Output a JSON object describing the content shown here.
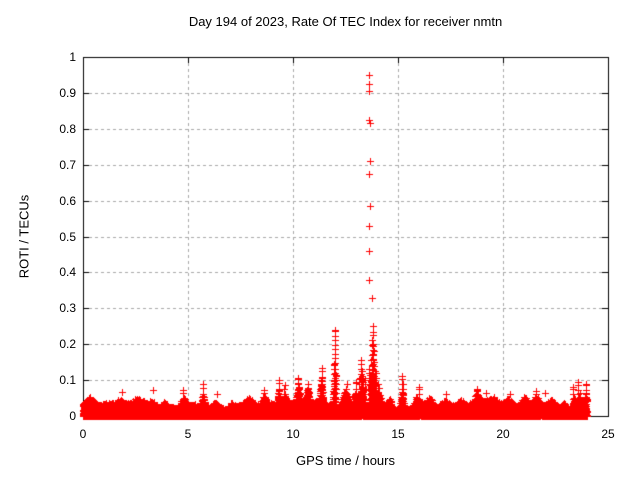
{
  "window": {
    "background": "#ffffff"
  },
  "chart_data": {
    "type": "scatter",
    "title": "Day 194 of 2023, Rate Of TEC Index for receiver nmtn",
    "xlabel": "GPS time / hours",
    "ylabel": "ROTI / TECUs",
    "xlim": [
      0,
      25
    ],
    "ylim": [
      0,
      1
    ],
    "xticks": {
      "values": [
        0,
        5,
        10,
        15,
        20,
        25
      ],
      "labels": [
        "0",
        "5",
        "10",
        "15",
        "20",
        "25"
      ]
    },
    "yticks": {
      "values": [
        0,
        0.1,
        0.2,
        0.3,
        0.4,
        0.5,
        0.6,
        0.7,
        0.8,
        0.9,
        1
      ],
      "labels": [
        "0",
        "0.1",
        "0.2",
        "0.3",
        "0.4",
        "0.5",
        "0.6",
        "0.7",
        "0.8",
        "0.9",
        "1"
      ]
    },
    "grid": {
      "show": true,
      "color": "#a9a9a9",
      "dash": [
        3,
        3
      ]
    },
    "axis_color": "#000000",
    "legend": "none",
    "series": [
      {
        "name": "ROTI",
        "marker": "plus",
        "marker_size": 7,
        "color": "#ff0000"
      }
    ],
    "x_data_range": [
      0,
      24
    ],
    "baseline_band": {
      "y_min": 0,
      "y_typical_top": 0.045,
      "description": "dense red noise band spanning 0-24 h, values mostly below 0.05"
    },
    "bumps": [
      {
        "x": 0.35,
        "h": 0.055,
        "w": 0.15
      },
      {
        "x": 1.05,
        "h": 0.05,
        "w": 0.2
      },
      {
        "x": 1.8,
        "h": 0.058,
        "w": 0.15
      },
      {
        "x": 2.6,
        "h": 0.052,
        "w": 0.2
      },
      {
        "x": 3.3,
        "h": 0.06,
        "w": 0.15
      },
      {
        "x": 3.9,
        "h": 0.058,
        "w": 0.12
      },
      {
        "x": 4.78,
        "h": 0.07,
        "w": 0.15
      },
      {
        "x": 5.72,
        "h": 0.082,
        "w": 0.1
      },
      {
        "x": 6.3,
        "h": 0.06,
        "w": 0.2
      },
      {
        "x": 7.1,
        "h": 0.063,
        "w": 0.15
      },
      {
        "x": 7.9,
        "h": 0.06,
        "w": 0.2
      },
      {
        "x": 8.62,
        "h": 0.068,
        "w": 0.12
      },
      {
        "x": 9.33,
        "h": 0.09,
        "w": 0.08
      },
      {
        "x": 9.6,
        "h": 0.08,
        "w": 0.1
      },
      {
        "x": 10.25,
        "h": 0.095,
        "w": 0.07
      },
      {
        "x": 10.7,
        "h": 0.085,
        "w": 0.1
      },
      {
        "x": 11.35,
        "h": 0.11,
        "w": 0.07
      },
      {
        "x": 11.95,
        "h": 0.12,
        "w": 0.06
      },
      {
        "x": 12.5,
        "h": 0.085,
        "w": 0.15
      },
      {
        "x": 13.0,
        "h": 0.09,
        "w": 0.1
      },
      {
        "x": 13.3,
        "h": 0.12,
        "w": 0.08
      },
      {
        "x": 13.78,
        "h": 0.14,
        "w": 0.1
      },
      {
        "x": 14.1,
        "h": 0.088,
        "w": 0.12
      },
      {
        "x": 14.6,
        "h": 0.075,
        "w": 0.15
      },
      {
        "x": 15.2,
        "h": 0.095,
        "w": 0.08
      },
      {
        "x": 15.9,
        "h": 0.075,
        "w": 0.12
      },
      {
        "x": 16.5,
        "h": 0.065,
        "w": 0.15
      },
      {
        "x": 17.2,
        "h": 0.06,
        "w": 0.2
      },
      {
        "x": 18.0,
        "h": 0.06,
        "w": 0.2
      },
      {
        "x": 18.77,
        "h": 0.07,
        "w": 0.12
      },
      {
        "x": 19.5,
        "h": 0.06,
        "w": 0.2
      },
      {
        "x": 20.3,
        "h": 0.06,
        "w": 0.2
      },
      {
        "x": 21.0,
        "h": 0.063,
        "w": 0.15
      },
      {
        "x": 21.6,
        "h": 0.067,
        "w": 0.12
      },
      {
        "x": 22.3,
        "h": 0.06,
        "w": 0.2
      },
      {
        "x": 22.9,
        "h": 0.065,
        "w": 0.15
      },
      {
        "x": 23.4,
        "h": 0.078,
        "w": 0.08
      },
      {
        "x": 23.65,
        "h": 0.088,
        "w": 0.06
      },
      {
        "x": 23.95,
        "h": 0.082,
        "w": 0.08
      }
    ],
    "towers": [
      {
        "x": 12.0,
        "top": 0.24
      },
      {
        "x": 11.95,
        "top": 0.145
      },
      {
        "x": 12.06,
        "top": 0.115
      },
      {
        "x": 11.38,
        "top": 0.135
      },
      {
        "x": 11.32,
        "top": 0.1
      },
      {
        "x": 13.22,
        "top": 0.155
      },
      {
        "x": 13.27,
        "top": 0.125
      },
      {
        "x": 13.17,
        "top": 0.105
      },
      {
        "x": 13.62,
        "top": 0.13
      },
      {
        "x": 13.67,
        "top": 0.115
      },
      {
        "x": 13.79,
        "top": 0.235
      },
      {
        "x": 13.83,
        "top": 0.2
      },
      {
        "x": 13.74,
        "top": 0.17
      },
      {
        "x": 13.88,
        "top": 0.15
      },
      {
        "x": 13.93,
        "top": 0.12
      },
      {
        "x": 15.18,
        "top": 0.112
      },
      {
        "x": 15.23,
        "top": 0.09
      },
      {
        "x": 9.33,
        "top": 0.1
      },
      {
        "x": 9.6,
        "top": 0.085
      },
      {
        "x": 10.25,
        "top": 0.105
      },
      {
        "x": 10.7,
        "top": 0.088
      },
      {
        "x": 5.72,
        "top": 0.088
      },
      {
        "x": 4.78,
        "top": 0.072
      },
      {
        "x": 8.62,
        "top": 0.072
      },
      {
        "x": 12.55,
        "top": 0.088
      },
      {
        "x": 13.0,
        "top": 0.095
      },
      {
        "x": 13.45,
        "top": 0.1
      },
      {
        "x": 14.07,
        "top": 0.09
      },
      {
        "x": 16.0,
        "top": 0.082
      },
      {
        "x": 18.77,
        "top": 0.074
      },
      {
        "x": 21.55,
        "top": 0.07
      },
      {
        "x": 23.58,
        "top": 0.095
      },
      {
        "x": 23.35,
        "top": 0.082
      },
      {
        "x": 23.97,
        "top": 0.088
      }
    ],
    "outliers": [
      [
        13.62,
        0.95
      ],
      [
        13.6,
        0.925
      ],
      [
        13.615,
        0.905
      ],
      [
        13.62,
        0.825
      ],
      [
        13.645,
        0.815
      ],
      [
        13.66,
        0.71
      ],
      [
        13.62,
        0.675
      ],
      [
        13.685,
        0.585
      ],
      [
        13.62,
        0.53
      ],
      [
        13.63,
        0.46
      ],
      [
        13.62,
        0.38
      ],
      [
        13.76,
        0.33
      ],
      [
        13.8,
        0.25
      ],
      [
        1.86,
        0.067
      ],
      [
        3.33,
        0.072
      ],
      [
        6.4,
        0.062
      ],
      [
        17.3,
        0.06
      ],
      [
        19.2,
        0.064
      ],
      [
        20.35,
        0.062
      ],
      [
        22.0,
        0.063
      ]
    ]
  }
}
